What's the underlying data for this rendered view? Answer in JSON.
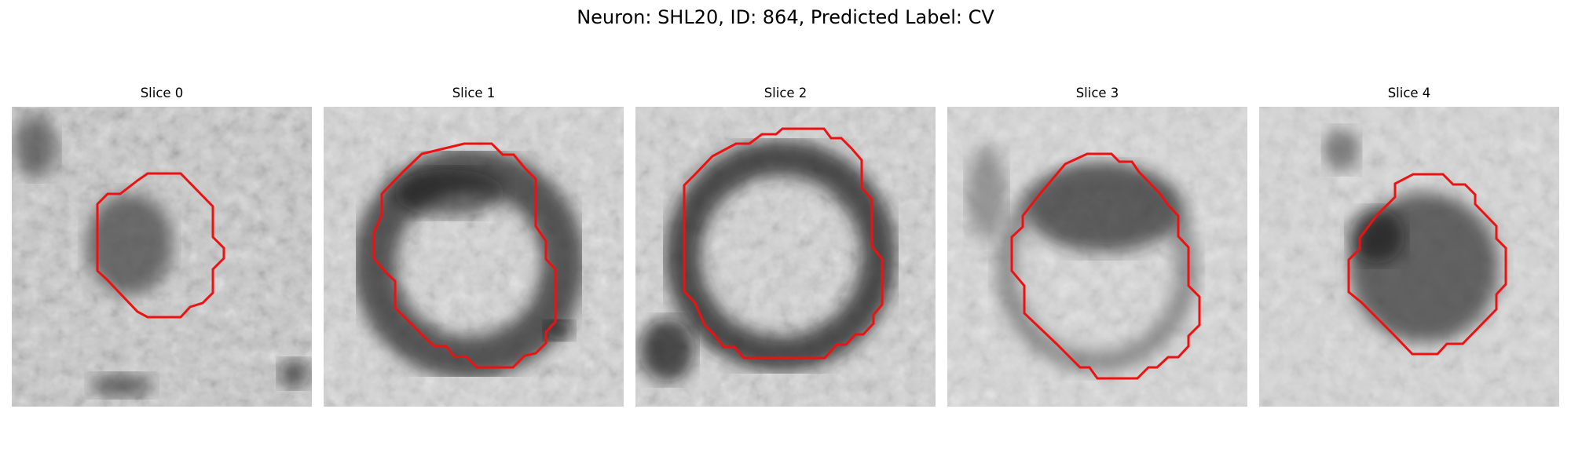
{
  "figure": {
    "title": "Neuron: SHL20, ID: 864, Predicted Label: CV",
    "contour_color": "#ee1111"
  },
  "slices": [
    {
      "label": "Slice 0"
    },
    {
      "label": "Slice 1"
    },
    {
      "label": "Slice 2"
    },
    {
      "label": "Slice 3"
    },
    {
      "label": "Slice 4"
    }
  ]
}
